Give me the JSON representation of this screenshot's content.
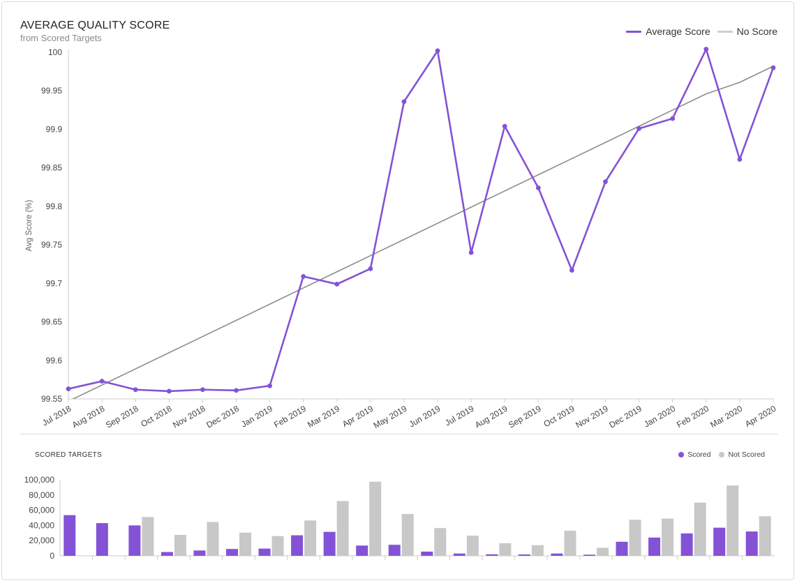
{
  "header": {
    "title": "AVERAGE QUALITY SCORE",
    "subtitle": "from Scored Targets"
  },
  "legend_top": {
    "average_label": "Average Score",
    "no_score_label": "No Score"
  },
  "bottom": {
    "title": "SCORED TARGETS",
    "scored_label": "Scored",
    "not_scored_label": "Not Scored"
  },
  "colors": {
    "purple": "#8452d6",
    "gray_line": "#8c8c8c",
    "light_gray": "#c8c8c8",
    "axis": "#cccccc"
  },
  "chart_data": [
    {
      "type": "line",
      "title": "AVERAGE QUALITY SCORE",
      "subtitle": "from Scored Targets",
      "ylabel": "Avg Score (%)",
      "ylim": [
        99.55,
        100
      ],
      "yticks": [
        "99.55",
        "99.6",
        "99.65",
        "99.7",
        "99.75",
        "99.8",
        "99.85",
        "99.9",
        "99.95",
        "100"
      ],
      "categories": [
        "Jul 2018",
        "Aug 2018",
        "Sep 2018",
        "Oct 2018",
        "Nov 2018",
        "Dec 2018",
        "Jan 2019",
        "Feb 2019",
        "Mar 2019",
        "Apr 2019",
        "May 2019",
        "Jun 2019",
        "Jul 2019",
        "Aug 2019",
        "Sep 2019",
        "Oct 2019",
        "Nov 2019",
        "Dec 2019",
        "Jan 2020",
        "Feb 2020",
        "Mar 2020",
        "Apr 2020"
      ],
      "series": [
        {
          "name": "Average Score",
          "values": [
            99.563,
            99.573,
            99.562,
            99.56,
            99.562,
            99.561,
            99.567,
            99.709,
            99.699,
            99.719,
            99.936,
            100.002,
            99.74,
            99.904,
            99.824,
            99.717,
            99.832,
            99.901,
            99.914,
            100.004,
            99.861,
            99.98
          ]
        },
        {
          "name": "No Score",
          "values": [
            99.547,
            99.568,
            99.589,
            99.61,
            99.631,
            99.652,
            99.673,
            99.694,
            99.715,
            99.736,
            99.757,
            99.778,
            99.799,
            99.82,
            99.841,
            99.862,
            99.883,
            99.904,
            99.925,
            99.946,
            99.961,
            99.982
          ]
        }
      ],
      "legend": "top-right",
      "grid": false
    },
    {
      "type": "bar",
      "title": "SCORED TARGETS",
      "ylim": [
        0,
        100000
      ],
      "yticks": [
        "0",
        "20,000",
        "40,000",
        "60,000",
        "80,000",
        "100,000"
      ],
      "categories": [
        "Jul 2018",
        "Aug 2018",
        "Sep 2018",
        "Oct 2018",
        "Nov 2018",
        "Dec 2018",
        "Jan 2019",
        "Feb 2019",
        "Mar 2019",
        "Apr 2019",
        "May 2019",
        "Jun 2019",
        "Jul 2019",
        "Aug 2019",
        "Sep 2019",
        "Oct 2019",
        "Nov 2019",
        "Dec 2019",
        "Jan 2020",
        "Feb 2020",
        "Mar 2020",
        "Apr 2020"
      ],
      "series": [
        {
          "name": "Scored",
          "values": [
            53500,
            43000,
            40000,
            5000,
            7000,
            9000,
            9500,
            27000,
            31500,
            13500,
            14500,
            5500,
            3000,
            2000,
            1800,
            3000,
            1500,
            18500,
            24000,
            29500,
            37000,
            32000
          ]
        },
        {
          "name": "Not Scored",
          "values": [
            0,
            0,
            51000,
            27500,
            44500,
            30500,
            26000,
            46500,
            72000,
            97500,
            55000,
            36500,
            26500,
            16500,
            14000,
            33000,
            10500,
            47500,
            49000,
            70000,
            92500,
            52000
          ]
        }
      ],
      "legend": "top-right",
      "grid": false
    }
  ]
}
